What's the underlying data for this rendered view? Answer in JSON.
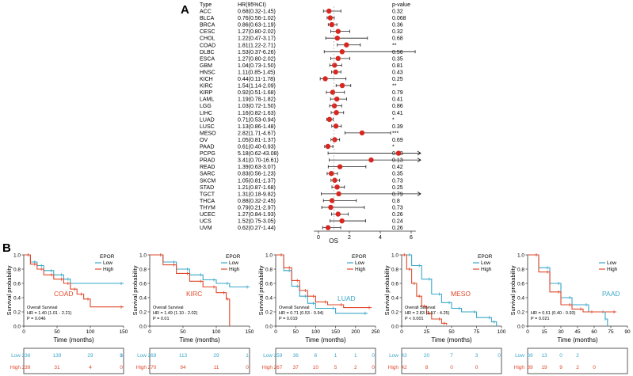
{
  "panel_a": {
    "label": "A",
    "headers": {
      "type": "Type",
      "hr": "HR(95%CI)",
      "p": "p-value"
    },
    "x_label": "OS",
    "x_ticks": [
      0,
      2,
      4,
      6
    ],
    "rows": [
      {
        "type": "ACC",
        "hr_text": "0.68(0.32-1.45)",
        "p": "0.32",
        "hr": 0.68,
        "lo": 0.32,
        "hi": 1.45
      },
      {
        "type": "BLCA",
        "hr_text": "0.76(0.56-1.02)",
        "p": "0.068",
        "hr": 0.76,
        "lo": 0.56,
        "hi": 1.02
      },
      {
        "type": "BRCA",
        "hr_text": "0.86(0.63-1.19)",
        "p": "0.36",
        "hr": 0.86,
        "lo": 0.63,
        "hi": 1.19
      },
      {
        "type": "CESC",
        "hr_text": "1.27(0.80-2.02)",
        "p": "0.32",
        "hr": 1.27,
        "lo": 0.8,
        "hi": 2.02
      },
      {
        "type": "CHOL",
        "hr_text": "1.22(0.47-3.17)",
        "p": "0.68",
        "hr": 1.22,
        "lo": 0.47,
        "hi": 3.17
      },
      {
        "type": "COAD",
        "hr_text": "1.81(1.22-2.71)",
        "p": "**",
        "hr": 1.81,
        "lo": 1.22,
        "hi": 2.71
      },
      {
        "type": "DLBC",
        "hr_text": "1.53(0.37-6.26)",
        "p": "0.56",
        "hr": 1.53,
        "lo": 0.37,
        "hi": 6.26
      },
      {
        "type": "ESCA",
        "hr_text": "1.27(0.80-2.02)",
        "p": "0.35",
        "hr": 1.27,
        "lo": 0.8,
        "hi": 2.02
      },
      {
        "type": "GBM",
        "hr_text": "1.04(0.73-1.50)",
        "p": "0.81",
        "hr": 1.04,
        "lo": 0.73,
        "hi": 1.5
      },
      {
        "type": "HNSC",
        "hr_text": "1.11(0.85-1.45)",
        "p": "0.43",
        "hr": 1.11,
        "lo": 0.85,
        "hi": 1.45
      },
      {
        "type": "KICH",
        "hr_text": "0.44(0.11-1.78)",
        "p": "0.25",
        "hr": 0.44,
        "lo": 0.11,
        "hi": 1.78
      },
      {
        "type": "KIRC",
        "hr_text": "1.54(1.14-2.09)",
        "p": "**",
        "hr": 1.54,
        "lo": 1.14,
        "hi": 2.09
      },
      {
        "type": "KIRP",
        "hr_text": "0.92(0.51-1.68)",
        "p": "0.79",
        "hr": 0.92,
        "lo": 0.51,
        "hi": 1.68
      },
      {
        "type": "LAML",
        "hr_text": "1.19(0.78-1.82)",
        "p": "0.41",
        "hr": 1.19,
        "lo": 0.78,
        "hi": 1.82
      },
      {
        "type": "LGG",
        "hr_text": "1.03(0.72-1.50)",
        "p": "0.86",
        "hr": 1.03,
        "lo": 0.72,
        "hi": 1.5
      },
      {
        "type": "LIHC",
        "hr_text": "1.16(0.82-1.63)",
        "p": "0.41",
        "hr": 1.16,
        "lo": 0.82,
        "hi": 1.63
      },
      {
        "type": "LUAD",
        "hr_text": "0.71(0.53-0.94)",
        "p": "*",
        "hr": 0.71,
        "lo": 0.53,
        "hi": 0.94
      },
      {
        "type": "LUSC",
        "hr_text": "1.13(0.86-1.48)",
        "p": "0.39",
        "hr": 1.13,
        "lo": 0.86,
        "hi": 1.48
      },
      {
        "type": "MESO",
        "hr_text": "2.82(1.71-4.67)",
        "p": "***",
        "hr": 2.82,
        "lo": 1.71,
        "hi": 4.67
      },
      {
        "type": "OV",
        "hr_text": "1.05(0.81-1.37)",
        "p": "0.69",
        "hr": 1.05,
        "lo": 0.81,
        "hi": 1.37
      },
      {
        "type": "PAAD",
        "hr_text": "0.61(0.40-0.93)",
        "p": "*",
        "hr": 0.61,
        "lo": 0.4,
        "hi": 0.93
      },
      {
        "type": "PCPG",
        "hr_text": "5.18(0.62-43.08)",
        "p": "0.13",
        "hr": 5.18,
        "lo": 0.62,
        "hi": 43.08
      },
      {
        "type": "PRAD",
        "hr_text": "3.41(0.70-16.61)",
        "p": "0.13",
        "hr": 3.41,
        "lo": 0.7,
        "hi": 16.61
      },
      {
        "type": "READ",
        "hr_text": "1.39(0.63-3.07)",
        "p": "0.42",
        "hr": 1.39,
        "lo": 0.63,
        "hi": 3.07
      },
      {
        "type": "SARC",
        "hr_text": "0.83(0.56-1.23)",
        "p": "0.35",
        "hr": 0.83,
        "lo": 0.56,
        "hi": 1.23
      },
      {
        "type": "SKCM",
        "hr_text": "1.05(0.81-1.37)",
        "p": "0.73",
        "hr": 1.05,
        "lo": 0.81,
        "hi": 1.37
      },
      {
        "type": "STAD",
        "hr_text": "1.21(0.87-1.68)",
        "p": "0.25",
        "hr": 1.21,
        "lo": 0.87,
        "hi": 1.68
      },
      {
        "type": "TGCT",
        "hr_text": "1.31(0.18-9.82)",
        "p": "0.79",
        "hr": 1.31,
        "lo": 0.18,
        "hi": 9.82
      },
      {
        "type": "THCA",
        "hr_text": "0.88(0.32-2.45)",
        "p": "0.8",
        "hr": 0.88,
        "lo": 0.32,
        "hi": 2.45
      },
      {
        "type": "THYM",
        "hr_text": "0.79(0.21-2.97)",
        "p": "0.73",
        "hr": 0.79,
        "lo": 0.21,
        "hi": 2.97
      },
      {
        "type": "UCEC",
        "hr_text": "1.27(0.84-1.93)",
        "p": "0.26",
        "hr": 1.27,
        "lo": 0.84,
        "hi": 1.93
      },
      {
        "type": "UCS",
        "hr_text": "1.52(0.75-3.05)",
        "p": "0.24",
        "hr": 1.52,
        "lo": 0.75,
        "hi": 3.05
      },
      {
        "type": "UVM",
        "hr_text": "0.62(0.27-1.44)",
        "p": "0.26",
        "hr": 0.62,
        "lo": 0.27,
        "hi": 1.44
      }
    ]
  },
  "panel_b": {
    "label": "B",
    "y_label": "Survival probability",
    "x_label": "Time (months)",
    "y_ticks": [
      "0.0",
      "0.2",
      "0.4",
      "0.6",
      "0.8",
      "1.0"
    ],
    "risk_labels": [
      "Low",
      "High"
    ],
    "plots": [
      {
        "cancer": "COAD",
        "legend_title": "EPOR",
        "legend": [
          "Low",
          "High"
        ],
        "stats": [
          "Overall Survival",
          "HR = 1.40 (1.01 - 2.21)",
          "P = 0.046"
        ],
        "xmax": 150,
        "x_ticks": [
          0,
          50,
          100,
          150
        ],
        "low": [
          [
            0,
            1
          ],
          [
            10,
            0.9
          ],
          [
            20,
            0.85
          ],
          [
            30,
            0.78
          ],
          [
            45,
            0.72
          ],
          [
            60,
            0.66
          ],
          [
            70,
            0.6
          ],
          [
            150,
            0.6
          ]
        ],
        "high": [
          [
            0,
            1
          ],
          [
            10,
            0.87
          ],
          [
            20,
            0.8
          ],
          [
            30,
            0.72
          ],
          [
            45,
            0.66
          ],
          [
            60,
            0.6
          ],
          [
            70,
            0.52
          ],
          [
            80,
            0.45
          ],
          [
            90,
            0.38
          ],
          [
            100,
            0.27
          ],
          [
            150,
            0.27
          ]
        ],
        "risk_low": [
          "236",
          "139",
          "29",
          "9",
          "1"
        ],
        "risk_high": [
          "239",
          "31",
          "4",
          "0"
        ]
      },
      {
        "cancer": "KIRC",
        "legend_title": "EPOR",
        "legend": [
          "Low",
          "High"
        ],
        "stats": [
          "Overall Survival",
          "HR = 1.49 (1.10 - 2.02)",
          "P = 0.01"
        ],
        "xmax": 150,
        "x_ticks": [
          0,
          50,
          100,
          150
        ],
        "low": [
          [
            0,
            1
          ],
          [
            20,
            0.9
          ],
          [
            40,
            0.8
          ],
          [
            60,
            0.72
          ],
          [
            80,
            0.65
          ],
          [
            100,
            0.6
          ],
          [
            120,
            0.55
          ],
          [
            150,
            0.55
          ]
        ],
        "high": [
          [
            0,
            1
          ],
          [
            20,
            0.86
          ],
          [
            40,
            0.74
          ],
          [
            60,
            0.63
          ],
          [
            80,
            0.55
          ],
          [
            100,
            0.47
          ],
          [
            115,
            0.38
          ],
          [
            120,
            0.0
          ]
        ],
        "risk_low": [
          "269",
          "113",
          "29",
          "1"
        ],
        "risk_high": [
          "270",
          "94",
          "11",
          "0"
        ]
      },
      {
        "cancer": "LUAD",
        "legend_title": "EPOR",
        "legend": [
          "Low",
          "High"
        ],
        "stats": [
          "Overall Survival",
          "HR = 0.71 (0.53 - 0.94)",
          "P = 0.019"
        ],
        "xmax": 250,
        "x_ticks": [
          0,
          50,
          100,
          150,
          200,
          250
        ],
        "low": [
          [
            0,
            1
          ],
          [
            20,
            0.78
          ],
          [
            40,
            0.56
          ],
          [
            60,
            0.42
          ],
          [
            80,
            0.32
          ],
          [
            100,
            0.25
          ],
          [
            150,
            0.18
          ],
          [
            230,
            0.18
          ]
        ],
        "high": [
          [
            0,
            1
          ],
          [
            20,
            0.82
          ],
          [
            40,
            0.64
          ],
          [
            60,
            0.5
          ],
          [
            80,
            0.42
          ],
          [
            100,
            0.34
          ],
          [
            130,
            0.3
          ],
          [
            170,
            0.26
          ],
          [
            240,
            0.26
          ]
        ],
        "risk_low": [
          "259",
          "36",
          "6",
          "1",
          "1",
          "0"
        ],
        "risk_high": [
          "267",
          "37",
          "10",
          "5",
          "2",
          "0"
        ]
      },
      {
        "cancer": "MESO",
        "legend_title": "EPOR",
        "legend": [
          "Low",
          "High"
        ],
        "stats": [
          "Overall Survival",
          "HR = 2.83 (1.57 - 4.25)",
          "P < 0.001"
        ],
        "xmax": 100,
        "x_ticks": [
          0,
          25,
          50,
          75,
          100
        ],
        "low": [
          [
            0,
            1
          ],
          [
            10,
            0.85
          ],
          [
            20,
            0.66
          ],
          [
            30,
            0.45
          ],
          [
            40,
            0.33
          ],
          [
            50,
            0.25
          ],
          [
            60,
            0.2
          ],
          [
            75,
            0.12
          ],
          [
            90,
            0.06
          ],
          [
            95,
            0.0
          ]
        ],
        "high": [
          [
            0,
            1
          ],
          [
            5,
            0.8
          ],
          [
            10,
            0.6
          ],
          [
            15,
            0.42
          ],
          [
            20,
            0.28
          ],
          [
            25,
            0.18
          ],
          [
            30,
            0.1
          ],
          [
            40,
            0.04
          ],
          [
            45,
            0.02
          ]
        ],
        "risk_low": [
          "43",
          "20",
          "7",
          "3",
          "0"
        ],
        "risk_high": [
          "42",
          "8",
          "0",
          "0"
        ]
      },
      {
        "cancer": "PAAD",
        "legend_title": "",
        "legend": [
          "Low",
          "High"
        ],
        "stats": [
          "HR = 0.61 (0.40 - 0.93)",
          "P = 0.021"
        ],
        "xmax": 90,
        "x_ticks": [
          0,
          15,
          30,
          45,
          60,
          75,
          90
        ],
        "low": [
          [
            0,
            1
          ],
          [
            10,
            0.82
          ],
          [
            20,
            0.6
          ],
          [
            30,
            0.4
          ],
          [
            40,
            0.3
          ],
          [
            55,
            0.2
          ],
          [
            70,
            0.1
          ],
          [
            72,
            0.0
          ]
        ],
        "high": [
          [
            0,
            1
          ],
          [
            10,
            0.76
          ],
          [
            20,
            0.48
          ],
          [
            30,
            0.3
          ],
          [
            40,
            0.24
          ],
          [
            50,
            0.2
          ],
          [
            60,
            0.2
          ],
          [
            80,
            0.2
          ]
        ],
        "risk_low": [
          "89",
          "13",
          "0",
          "2"
        ],
        "risk_high": [
          "89",
          "19",
          "9",
          "2",
          "0"
        ]
      }
    ]
  },
  "chart_data": [
    {
      "type": "scatter",
      "title": "",
      "xlabel": "OS",
      "xlim": [
        -0.5,
        6.5
      ],
      "categories": [
        "ACC",
        "BLCA",
        "BRCA",
        "CESC",
        "CHOL",
        "COAD",
        "DLBC",
        "ESCA",
        "GBM",
        "HNSC",
        "KICH",
        "KIRC",
        "KIRP",
        "LAML",
        "LGG",
        "LIHC",
        "LUAD",
        "LUSC",
        "MESO",
        "OV",
        "PAAD",
        "PCPG",
        "PRAD",
        "READ",
        "SARC",
        "SKCM",
        "STAD",
        "TGCT",
        "THCA",
        "THYM",
        "UCEC",
        "UCS",
        "UVM"
      ],
      "hr": [
        0.68,
        0.76,
        0.86,
        1.27,
        1.22,
        1.81,
        1.53,
        1.27,
        1.04,
        1.11,
        0.44,
        1.54,
        0.92,
        1.19,
        1.03,
        1.16,
        0.71,
        1.13,
        2.82,
        1.05,
        0.61,
        5.18,
        3.41,
        1.39,
        0.83,
        1.05,
        1.21,
        1.31,
        0.88,
        0.79,
        1.27,
        1.52,
        0.62
      ],
      "ci_low": [
        0.32,
        0.56,
        0.63,
        0.8,
        0.47,
        1.22,
        0.37,
        0.8,
        0.73,
        0.85,
        0.11,
        1.14,
        0.51,
        0.78,
        0.72,
        0.82,
        0.53,
        0.86,
        1.71,
        0.81,
        0.4,
        0.62,
        0.7,
        0.63,
        0.56,
        0.81,
        0.87,
        0.18,
        0.32,
        0.21,
        0.84,
        0.75,
        0.27
      ],
      "ci_high": [
        1.45,
        1.02,
        1.19,
        2.02,
        3.17,
        2.71,
        6.26,
        2.02,
        1.5,
        1.45,
        1.78,
        2.09,
        1.68,
        1.82,
        1.5,
        1.63,
        0.94,
        1.48,
        4.67,
        1.37,
        0.93,
        43.08,
        16.61,
        3.07,
        1.23,
        1.37,
        1.68,
        9.82,
        2.45,
        2.97,
        1.93,
        3.05,
        1.44
      ]
    },
    {
      "type": "line",
      "title": "COAD",
      "xlabel": "Time (months)",
      "ylabel": "Survival probability",
      "ylim": [
        0,
        1
      ],
      "series": [
        {
          "name": "Low"
        },
        {
          "name": "High"
        }
      ]
    },
    {
      "type": "line",
      "title": "KIRC",
      "xlabel": "Time (months)",
      "ylabel": "Survival probability",
      "ylim": [
        0,
        1
      ],
      "series": [
        {
          "name": "Low"
        },
        {
          "name": "High"
        }
      ]
    },
    {
      "type": "line",
      "title": "LUAD",
      "xlabel": "Time (months)",
      "ylabel": "Survival probability",
      "ylim": [
        0,
        1
      ],
      "series": [
        {
          "name": "Low"
        },
        {
          "name": "High"
        }
      ]
    },
    {
      "type": "line",
      "title": "MESO",
      "xlabel": "Time (months)",
      "ylabel": "Survival probability",
      "ylim": [
        0,
        1
      ],
      "series": [
        {
          "name": "Low"
        },
        {
          "name": "High"
        }
      ]
    },
    {
      "type": "line",
      "title": "PAAD",
      "xlabel": "Time (months)",
      "ylabel": "Survival probability",
      "ylim": [
        0,
        1
      ],
      "series": [
        {
          "name": "Low"
        },
        {
          "name": "High"
        }
      ]
    }
  ],
  "colors": {
    "low": "#3aa7c9",
    "high": "#e0492c",
    "point": "#d8261f",
    "axis": "#333333"
  }
}
